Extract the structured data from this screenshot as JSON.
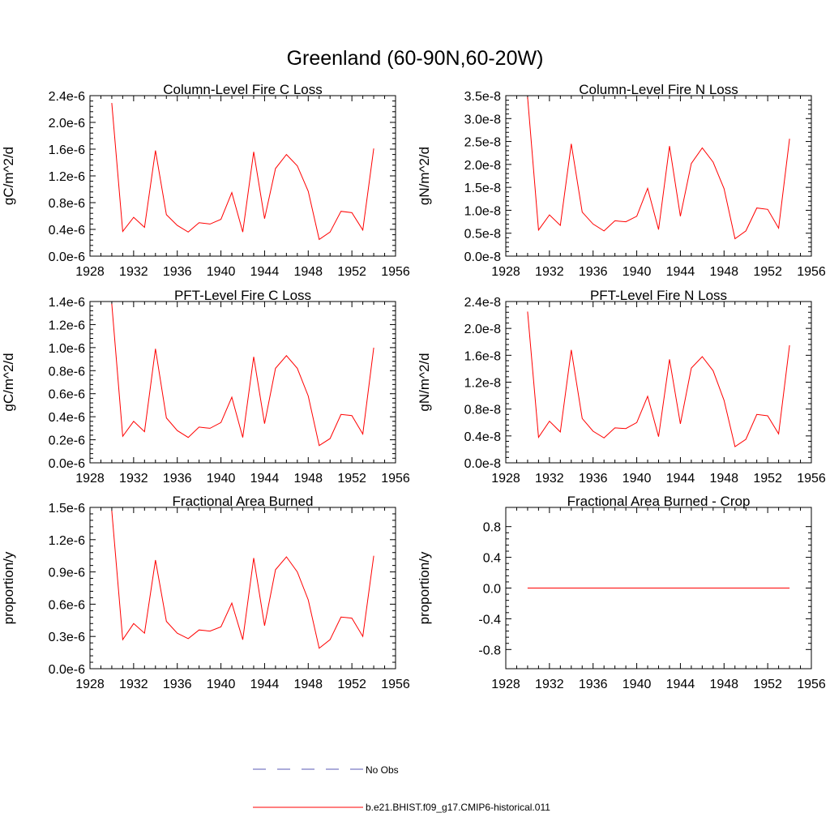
{
  "figure": {
    "title": "Greenland (60-90N,60-20W)"
  },
  "legend": {
    "placement": "bottom-center",
    "entries": [
      {
        "label": "No Obs",
        "color": "#5a5ab4",
        "style": "dashed"
      },
      {
        "label": "b.e21.BHIST.f09_g17.CMIP6-historical.011",
        "color": "#ff0000",
        "style": "solid"
      }
    ]
  },
  "chart_data": [
    {
      "type": "line",
      "title": "Column-Level Fire C Loss",
      "xlabel": "",
      "ylabel": "gC/m^2/d",
      "xlim": [
        1928,
        1956
      ],
      "xticks": [
        "1928",
        "1932",
        "1936",
        "1940",
        "1944",
        "1948",
        "1952",
        "1956"
      ],
      "ylim": [
        0,
        2.4e-06
      ],
      "yticks": [
        {
          "v": 0,
          "label": "0.0e-6"
        },
        {
          "v": 4e-07,
          "label": "0.4e-6"
        },
        {
          "v": 8e-07,
          "label": "0.8e-6"
        },
        {
          "v": 1.2e-06,
          "label": "1.2e-6"
        },
        {
          "v": 1.6e-06,
          "label": "1.6e-6"
        },
        {
          "v": 2e-06,
          "label": "2.0e-6"
        },
        {
          "v": 2.4e-06,
          "label": "2.4e-6"
        }
      ],
      "x": [
        1930,
        1931,
        1932,
        1933,
        1934,
        1935,
        1936,
        1937,
        1938,
        1939,
        1940,
        1941,
        1942,
        1943,
        1944,
        1945,
        1946,
        1947,
        1948,
        1949,
        1950,
        1951,
        1952,
        1953,
        1954
      ],
      "series": [
        {
          "color": "#ff0000",
          "values": [
            2.29e-06,
            3.7e-07,
            5.8e-07,
            4.3e-07,
            1.58e-06,
            6.2e-07,
            4.6e-07,
            3.6e-07,
            5e-07,
            4.8e-07,
            5.5e-07,
            9.5e-07,
            3.6e-07,
            1.56e-06,
            5.6e-07,
            1.31e-06,
            1.52e-06,
            1.35e-06,
            9.7e-07,
            2.5e-07,
            3.6e-07,
            6.7e-07,
            6.5e-07,
            3.9e-07,
            1.61e-06
          ]
        }
      ]
    },
    {
      "type": "line",
      "title": "Column-Level Fire N Loss",
      "xlabel": "",
      "ylabel": "gN/m^2/d",
      "xlim": [
        1928,
        1956
      ],
      "xticks": [
        "1928",
        "1932",
        "1936",
        "1940",
        "1944",
        "1948",
        "1952",
        "1956"
      ],
      "ylim": [
        0,
        3.5e-08
      ],
      "yticks": [
        {
          "v": 0,
          "label": "0.0e-8"
        },
        {
          "v": 5e-09,
          "label": "0.5e-8"
        },
        {
          "v": 1e-08,
          "label": "1.0e-8"
        },
        {
          "v": 1.5e-08,
          "label": "1.5e-8"
        },
        {
          "v": 2e-08,
          "label": "2.0e-8"
        },
        {
          "v": 2.5e-08,
          "label": "2.5e-8"
        },
        {
          "v": 3e-08,
          "label": "3.0e-8"
        },
        {
          "v": 3.5e-08,
          "label": "3.5e-8"
        }
      ],
      "x": [
        1930,
        1931,
        1932,
        1933,
        1934,
        1935,
        1936,
        1937,
        1938,
        1939,
        1940,
        1941,
        1942,
        1943,
        1944,
        1945,
        1946,
        1947,
        1948,
        1949,
        1950,
        1951,
        1952,
        1953,
        1954
      ],
      "series": [
        {
          "color": "#ff0000",
          "values": [
            3.47e-08,
            5.7e-09,
            9e-09,
            6.7e-09,
            2.45e-08,
            9.6e-09,
            7e-09,
            5.5e-09,
            7.7e-09,
            7.5e-09,
            8.7e-09,
            1.48e-08,
            5.8e-09,
            2.4e-08,
            8.7e-09,
            2.02e-08,
            2.36e-08,
            2.05e-08,
            1.47e-08,
            3.8e-09,
            5.5e-09,
            1.05e-08,
            1.02e-08,
            6.1e-09,
            2.56e-08
          ]
        }
      ]
    },
    {
      "type": "line",
      "title": "PFT-Level Fire C Loss",
      "xlabel": "",
      "ylabel": "gC/m^2/d",
      "xlim": [
        1928,
        1956
      ],
      "xticks": [
        "1928",
        "1932",
        "1936",
        "1940",
        "1944",
        "1948",
        "1952",
        "1956"
      ],
      "ylim": [
        0,
        1.4e-06
      ],
      "yticks": [
        {
          "v": 0,
          "label": "0.0e-6"
        },
        {
          "v": 2e-07,
          "label": "0.2e-6"
        },
        {
          "v": 4e-07,
          "label": "0.4e-6"
        },
        {
          "v": 6e-07,
          "label": "0.6e-6"
        },
        {
          "v": 8e-07,
          "label": "0.8e-6"
        },
        {
          "v": 1e-06,
          "label": "1.0e-6"
        },
        {
          "v": 1.2e-06,
          "label": "1.2e-6"
        },
        {
          "v": 1.4e-06,
          "label": "1.4e-6"
        }
      ],
      "x": [
        1930,
        1931,
        1932,
        1933,
        1934,
        1935,
        1936,
        1937,
        1938,
        1939,
        1940,
        1941,
        1942,
        1943,
        1944,
        1945,
        1946,
        1947,
        1948,
        1949,
        1950,
        1951,
        1952,
        1953,
        1954
      ],
      "series": [
        {
          "color": "#ff0000",
          "values": [
            1.38e-06,
            2.3e-07,
            3.6e-07,
            2.7e-07,
            9.9e-07,
            3.9e-07,
            2.8e-07,
            2.2e-07,
            3.1e-07,
            3e-07,
            3.5e-07,
            5.7e-07,
            2.2e-07,
            9.2e-07,
            3.4e-07,
            8.2e-07,
            9.3e-07,
            8.2e-07,
            5.8e-07,
            1.5e-07,
            2.1e-07,
            4.2e-07,
            4.1e-07,
            2.5e-07,
            1e-06
          ]
        }
      ]
    },
    {
      "type": "line",
      "title": "PFT-Level Fire N Loss",
      "xlabel": "",
      "ylabel": "gN/m^2/d",
      "xlim": [
        1928,
        1956
      ],
      "xticks": [
        "1928",
        "1932",
        "1936",
        "1940",
        "1944",
        "1948",
        "1952",
        "1956"
      ],
      "ylim": [
        0,
        2.4e-08
      ],
      "yticks": [
        {
          "v": 0,
          "label": "0.0e-8"
        },
        {
          "v": 4e-09,
          "label": "0.4e-8"
        },
        {
          "v": 8e-09,
          "label": "0.8e-8"
        },
        {
          "v": 1.2e-08,
          "label": "1.2e-8"
        },
        {
          "v": 1.6e-08,
          "label": "1.6e-8"
        },
        {
          "v": 2e-08,
          "label": "2.0e-8"
        },
        {
          "v": 2.4e-08,
          "label": "2.4e-8"
        }
      ],
      "x": [
        1930,
        1931,
        1932,
        1933,
        1934,
        1935,
        1936,
        1937,
        1938,
        1939,
        1940,
        1941,
        1942,
        1943,
        1944,
        1945,
        1946,
        1947,
        1948,
        1949,
        1950,
        1951,
        1952,
        1953,
        1954
      ],
      "series": [
        {
          "color": "#ff0000",
          "values": [
            2.25e-08,
            3.8e-09,
            6.2e-09,
            4.6e-09,
            1.68e-08,
            6.6e-09,
            4.7e-09,
            3.7e-09,
            5.2e-09,
            5.1e-09,
            6e-09,
            9.9e-09,
            3.9e-09,
            1.54e-08,
            5.8e-09,
            1.41e-08,
            1.58e-08,
            1.37e-08,
            9.3e-09,
            2.4e-09,
            3.5e-09,
            7.2e-09,
            7e-09,
            4.3e-09,
            1.75e-08
          ]
        }
      ]
    },
    {
      "type": "line",
      "title": "Fractional Area Burned",
      "xlabel": "",
      "ylabel": "proportion/y",
      "xlim": [
        1928,
        1956
      ],
      "xticks": [
        "1928",
        "1932",
        "1936",
        "1940",
        "1944",
        "1948",
        "1952",
        "1956"
      ],
      "ylim": [
        0,
        1.5e-06
      ],
      "yticks": [
        {
          "v": 0,
          "label": "0.0e-6"
        },
        {
          "v": 3e-07,
          "label": "0.3e-6"
        },
        {
          "v": 6e-07,
          "label": "0.6e-6"
        },
        {
          "v": 9e-07,
          "label": "0.9e-6"
        },
        {
          "v": 1.2e-06,
          "label": "1.2e-6"
        },
        {
          "v": 1.5e-06,
          "label": "1.5e-6"
        }
      ],
      "x": [
        1930,
        1931,
        1932,
        1933,
        1934,
        1935,
        1936,
        1937,
        1938,
        1939,
        1940,
        1941,
        1942,
        1943,
        1944,
        1945,
        1946,
        1947,
        1948,
        1949,
        1950,
        1951,
        1952,
        1953,
        1954
      ],
      "series": [
        {
          "color": "#ff0000",
          "values": [
            1.47e-06,
            2.7e-07,
            4.2e-07,
            3.3e-07,
            1.01e-06,
            4.4e-07,
            3.3e-07,
            2.8e-07,
            3.6e-07,
            3.5e-07,
            3.9e-07,
            6.1e-07,
            2.7e-07,
            1.03e-06,
            4e-07,
            9.2e-07,
            1.04e-06,
            9e-07,
            6.4e-07,
            1.9e-07,
            2.7e-07,
            4.8e-07,
            4.7e-07,
            3e-07,
            1.05e-06
          ]
        }
      ]
    },
    {
      "type": "line",
      "title": "Fractional Area Burned - Crop",
      "xlabel": "",
      "ylabel": "proportion/y",
      "xlim": [
        1928,
        1956
      ],
      "xticks": [
        "1928",
        "1932",
        "1936",
        "1940",
        "1944",
        "1948",
        "1952",
        "1956"
      ],
      "ylim": [
        -1.05,
        1.05
      ],
      "yticks": [
        {
          "v": -0.8,
          "label": "-0.8"
        },
        {
          "v": -0.4,
          "label": "-0.4"
        },
        {
          "v": 0,
          "label": "0.0"
        },
        {
          "v": 0.4,
          "label": "0.4"
        },
        {
          "v": 0.8,
          "label": "0.8"
        }
      ],
      "x": [
        1930,
        1931,
        1932,
        1933,
        1934,
        1935,
        1936,
        1937,
        1938,
        1939,
        1940,
        1941,
        1942,
        1943,
        1944,
        1945,
        1946,
        1947,
        1948,
        1949,
        1950,
        1951,
        1952,
        1953,
        1954
      ],
      "series": [
        {
          "color": "#ff0000",
          "values": [
            0,
            0,
            0,
            0,
            0,
            0,
            0,
            0,
            0,
            0,
            0,
            0,
            0,
            0,
            0,
            0,
            0,
            0,
            0,
            0,
            0,
            0,
            0,
            0,
            0
          ]
        }
      ]
    }
  ]
}
